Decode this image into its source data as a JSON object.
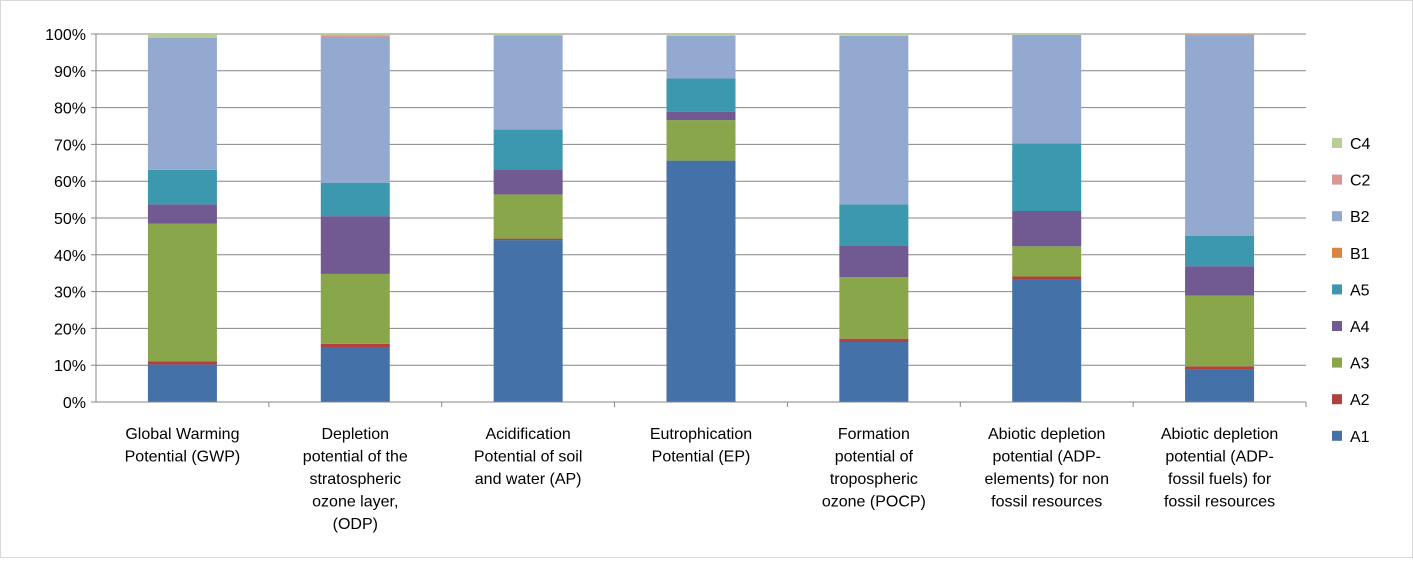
{
  "chart_data": {
    "type": "bar",
    "stacked": true,
    "percent": true,
    "title": "",
    "xlabel": "",
    "ylabel": "",
    "ylim": [
      0,
      100
    ],
    "y_ticks": [
      "0%",
      "10%",
      "20%",
      "30%",
      "40%",
      "50%",
      "60%",
      "70%",
      "80%",
      "90%",
      "100%"
    ],
    "grid": true,
    "legend_position": "right",
    "categories": [
      [
        "Global Warming",
        "Potential (GWP)"
      ],
      [
        "Depletion",
        "potential of the",
        "stratospheric",
        "ozone layer,",
        "(ODP)"
      ],
      [
        "Acidification",
        "Potential of soil",
        "and water (AP)"
      ],
      [
        "Eutrophication",
        "Potential (EP)"
      ],
      [
        "Formation",
        "potential of",
        "tropospheric",
        "ozone (POCP)"
      ],
      [
        "Abiotic depletion",
        "potential (ADP-",
        "elements) for non",
        "fossil resources"
      ],
      [
        "Abiotic depletion",
        "potential (ADP-",
        "fossil fuels) for",
        "fossil resources"
      ]
    ],
    "series": [
      {
        "name": "A1",
        "color": "#4472A8",
        "values": [
          10.2,
          14.8,
          44.0,
          65.6,
          16.3,
          33.3,
          8.8
        ]
      },
      {
        "name": "A2",
        "color": "#B2403E",
        "values": [
          0.8,
          1.0,
          0.4,
          0.0,
          0.9,
          0.8,
          0.9
        ]
      },
      {
        "name": "A3",
        "color": "#8AA64B",
        "values": [
          37.5,
          19.0,
          12.0,
          11.0,
          16.7,
          8.2,
          19.2
        ]
      },
      {
        "name": "A4",
        "color": "#715A91",
        "values": [
          5.2,
          15.7,
          6.8,
          2.3,
          8.6,
          9.6,
          8.0
        ]
      },
      {
        "name": "A5",
        "color": "#3C98AE",
        "values": [
          9.4,
          9.1,
          10.9,
          9.0,
          11.2,
          18.4,
          8.3
        ]
      },
      {
        "name": "B1",
        "color": "#DB843D",
        "values": [
          0.0,
          0.0,
          0.0,
          0.0,
          0.0,
          0.0,
          0.0
        ]
      },
      {
        "name": "B2",
        "color": "#93A9CF",
        "values": [
          35.9,
          39.6,
          25.5,
          11.6,
          45.8,
          29.5,
          54.4
        ]
      },
      {
        "name": "C2",
        "color": "#D99694",
        "values": [
          0.0,
          0.4,
          0.0,
          0.0,
          0.0,
          0.0,
          0.3
        ]
      },
      {
        "name": "C4",
        "color": "#B9CD96",
        "values": [
          1.0,
          0.4,
          0.4,
          0.5,
          0.5,
          0.2,
          0.1
        ]
      }
    ]
  }
}
